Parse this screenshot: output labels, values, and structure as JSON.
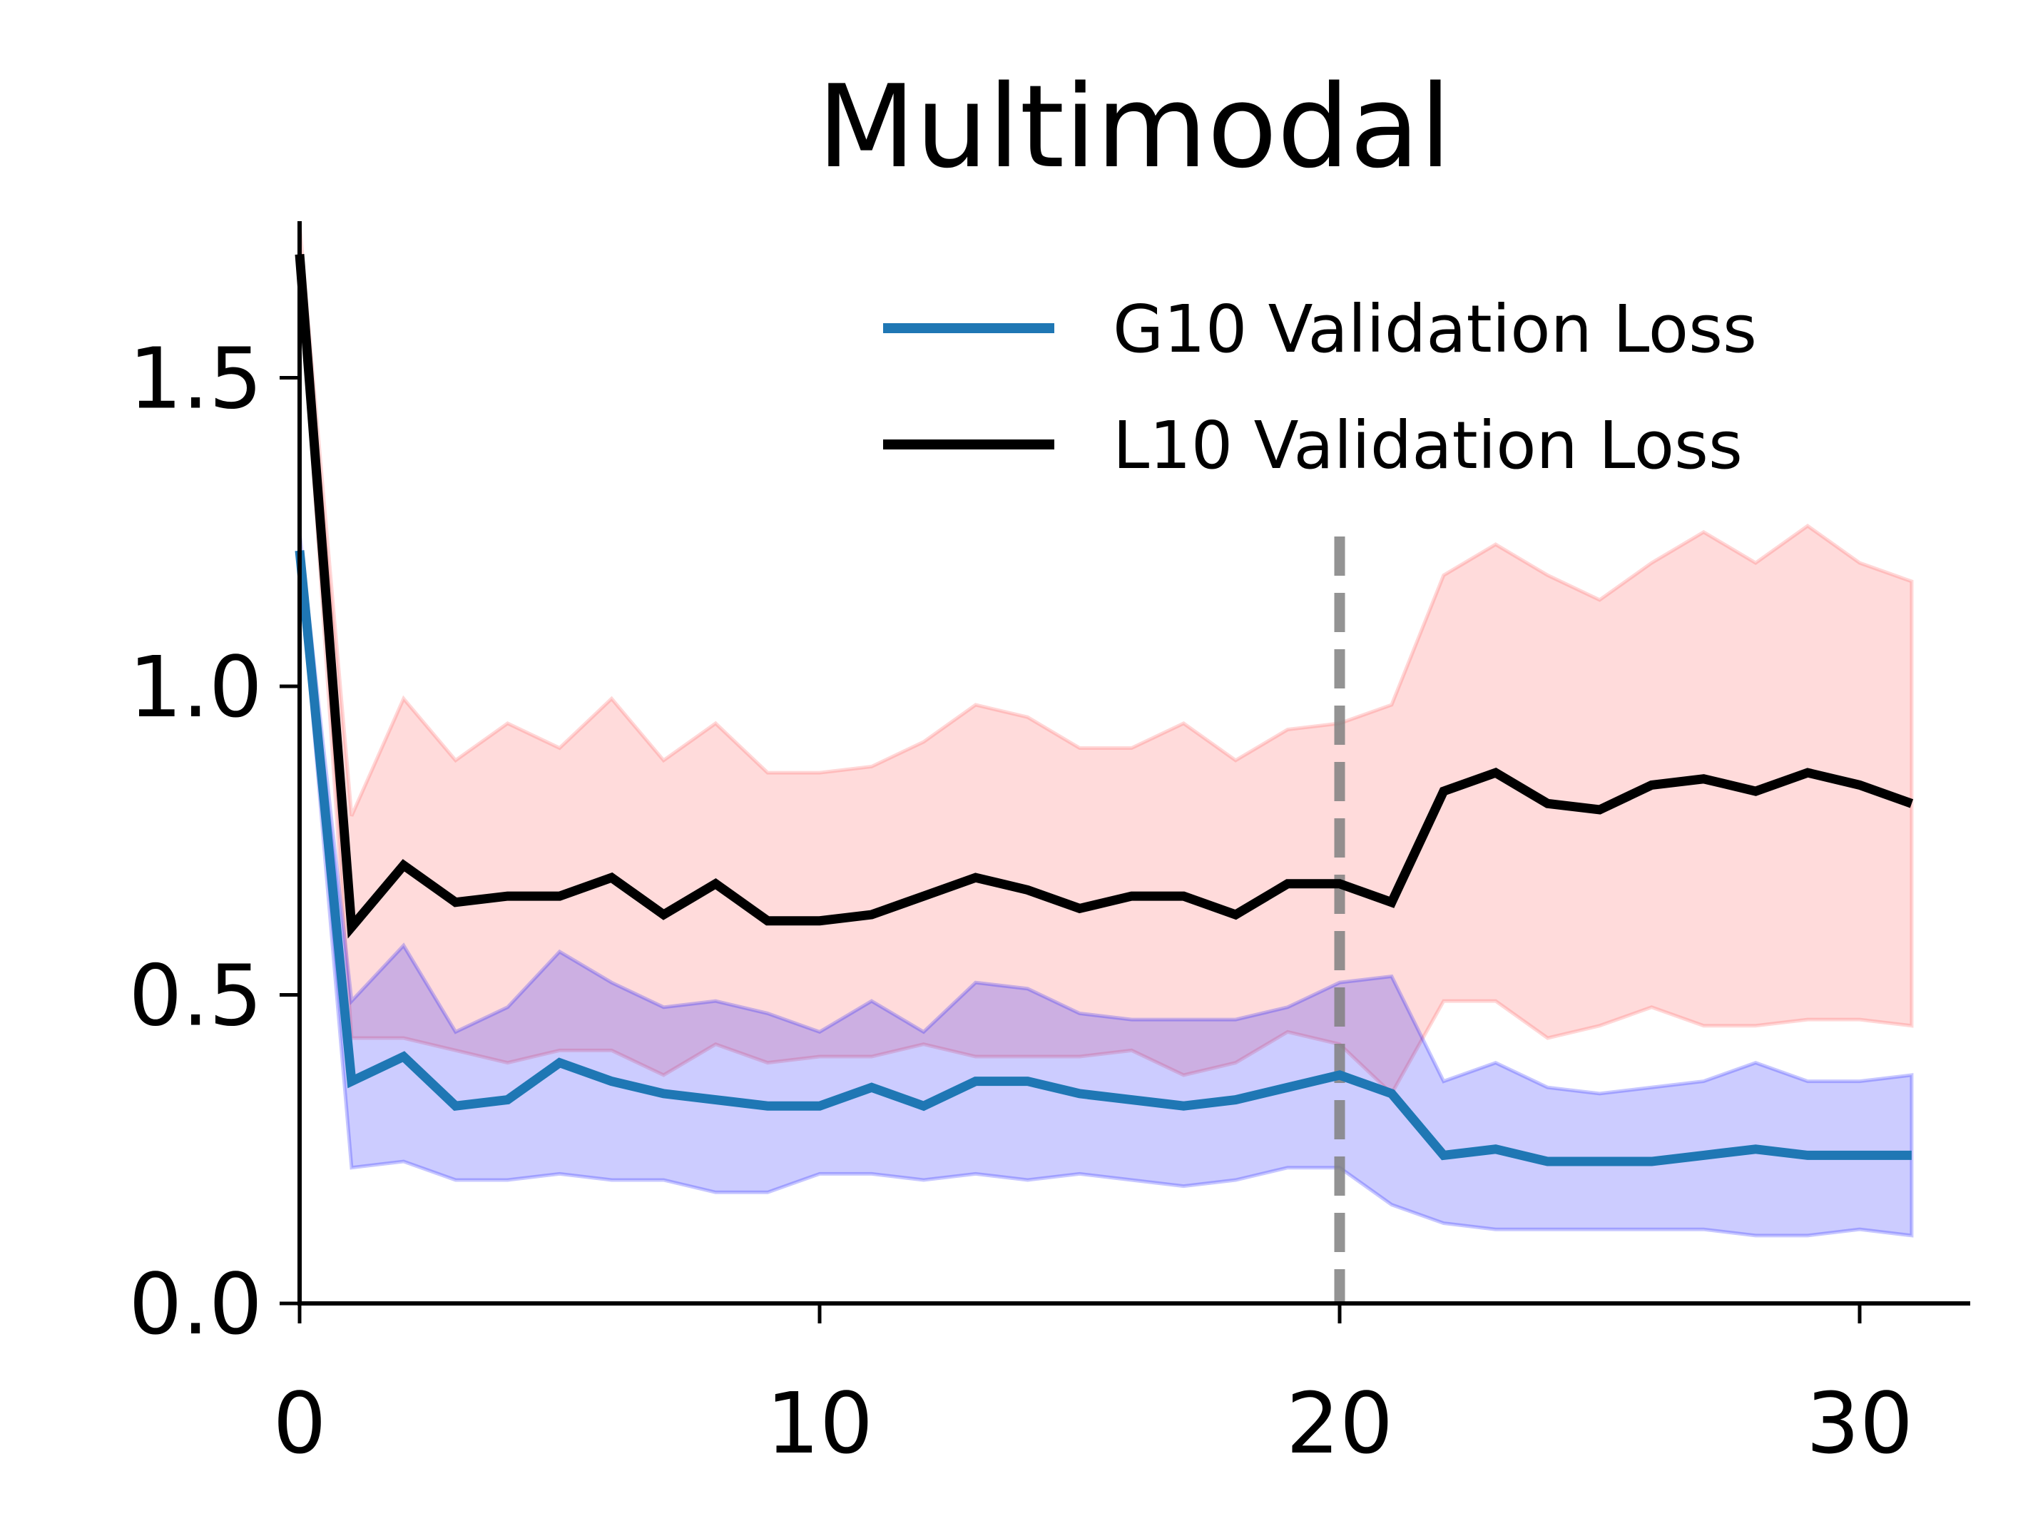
{
  "chart_data": {
    "type": "line",
    "title": "Multimodal",
    "xlabel": "",
    "ylabel": "",
    "xlim": [
      0,
      32
    ],
    "ylim": [
      0,
      1.75
    ],
    "xticks": [
      0,
      10,
      20,
      30
    ],
    "xtick_labels": [
      "0",
      "10",
      "20",
      "30"
    ],
    "yticks": [
      0.0,
      0.5,
      1.0,
      1.5
    ],
    "ytick_labels": [
      "0.0",
      "0.5",
      "1.0",
      "1.5"
    ],
    "grid": false,
    "legend_position": "top-right",
    "vline": {
      "x": 20,
      "style": "dashed",
      "color": "#808080"
    },
    "x": [
      0,
      1,
      2,
      3,
      4,
      5,
      6,
      7,
      8,
      9,
      10,
      11,
      12,
      13,
      14,
      15,
      16,
      17,
      18,
      19,
      20,
      21,
      22,
      23,
      24,
      25,
      26,
      27,
      28,
      29,
      30,
      31
    ],
    "series": [
      {
        "name": "G10 Validation Loss",
        "color": "#1f77b4",
        "band_color": "#0000ff",
        "values": [
          1.22,
          0.36,
          0.4,
          0.32,
          0.33,
          0.39,
          0.36,
          0.34,
          0.33,
          0.32,
          0.32,
          0.35,
          0.32,
          0.36,
          0.36,
          0.34,
          0.33,
          0.32,
          0.33,
          0.35,
          0.37,
          0.34,
          0.24,
          0.25,
          0.23,
          0.23,
          0.23,
          0.24,
          0.25,
          0.24,
          0.24,
          0.24
        ],
        "band_low": [
          1.2,
          0.22,
          0.23,
          0.2,
          0.2,
          0.21,
          0.2,
          0.2,
          0.18,
          0.18,
          0.21,
          0.21,
          0.2,
          0.21,
          0.2,
          0.21,
          0.2,
          0.19,
          0.2,
          0.22,
          0.22,
          0.16,
          0.13,
          0.12,
          0.12,
          0.12,
          0.12,
          0.12,
          0.11,
          0.11,
          0.12,
          0.11
        ],
        "band_high": [
          1.25,
          0.49,
          0.58,
          0.44,
          0.48,
          0.57,
          0.52,
          0.48,
          0.49,
          0.47,
          0.44,
          0.49,
          0.44,
          0.52,
          0.51,
          0.47,
          0.46,
          0.46,
          0.46,
          0.48,
          0.52,
          0.53,
          0.36,
          0.39,
          0.35,
          0.34,
          0.35,
          0.36,
          0.39,
          0.36,
          0.36,
          0.37
        ]
      },
      {
        "name": "L10 Validation Loss",
        "color": "#000000",
        "band_color": "#ff4a4a",
        "values": [
          1.7,
          0.61,
          0.71,
          0.65,
          0.66,
          0.66,
          0.69,
          0.63,
          0.68,
          0.62,
          0.62,
          0.63,
          0.66,
          0.69,
          0.67,
          0.64,
          0.66,
          0.66,
          0.63,
          0.68,
          0.68,
          0.65,
          0.83,
          0.86,
          0.81,
          0.8,
          0.84,
          0.85,
          0.83,
          0.86,
          0.84,
          0.81
        ],
        "band_low": [
          1.68,
          0.43,
          0.43,
          0.41,
          0.39,
          0.41,
          0.41,
          0.37,
          0.42,
          0.39,
          0.4,
          0.4,
          0.42,
          0.4,
          0.4,
          0.4,
          0.41,
          0.37,
          0.39,
          0.44,
          0.42,
          0.34,
          0.49,
          0.49,
          0.43,
          0.45,
          0.48,
          0.45,
          0.45,
          0.46,
          0.46,
          0.45
        ],
        "band_high": [
          1.75,
          0.79,
          0.98,
          0.88,
          0.94,
          0.9,
          0.98,
          0.88,
          0.94,
          0.86,
          0.86,
          0.87,
          0.91,
          0.97,
          0.95,
          0.9,
          0.9,
          0.94,
          0.88,
          0.93,
          0.94,
          0.97,
          1.18,
          1.23,
          1.18,
          1.14,
          1.2,
          1.25,
          1.2,
          1.26,
          1.2,
          1.17
        ]
      }
    ]
  }
}
